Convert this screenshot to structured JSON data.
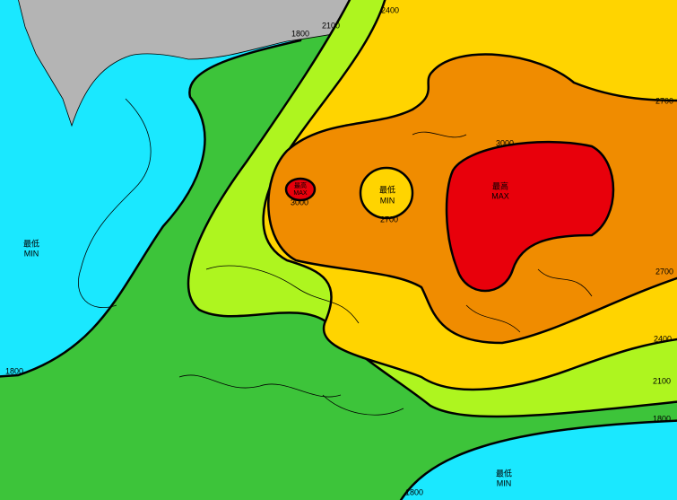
{
  "isohyet_labels": [
    "1800",
    "1800",
    "1800",
    "1800",
    "2100",
    "2100",
    "2400",
    "2400",
    "2700",
    "2700",
    "2700",
    "3000",
    "3000"
  ],
  "extremes": [
    {
      "zh": "最高",
      "en": "MAX"
    },
    {
      "zh": "最高",
      "en": "MAX"
    },
    {
      "zh": "最低",
      "en": "MIN"
    },
    {
      "zh": "最低",
      "en": "MIN"
    },
    {
      "zh": "最低",
      "en": "MIN"
    }
  ]
}
